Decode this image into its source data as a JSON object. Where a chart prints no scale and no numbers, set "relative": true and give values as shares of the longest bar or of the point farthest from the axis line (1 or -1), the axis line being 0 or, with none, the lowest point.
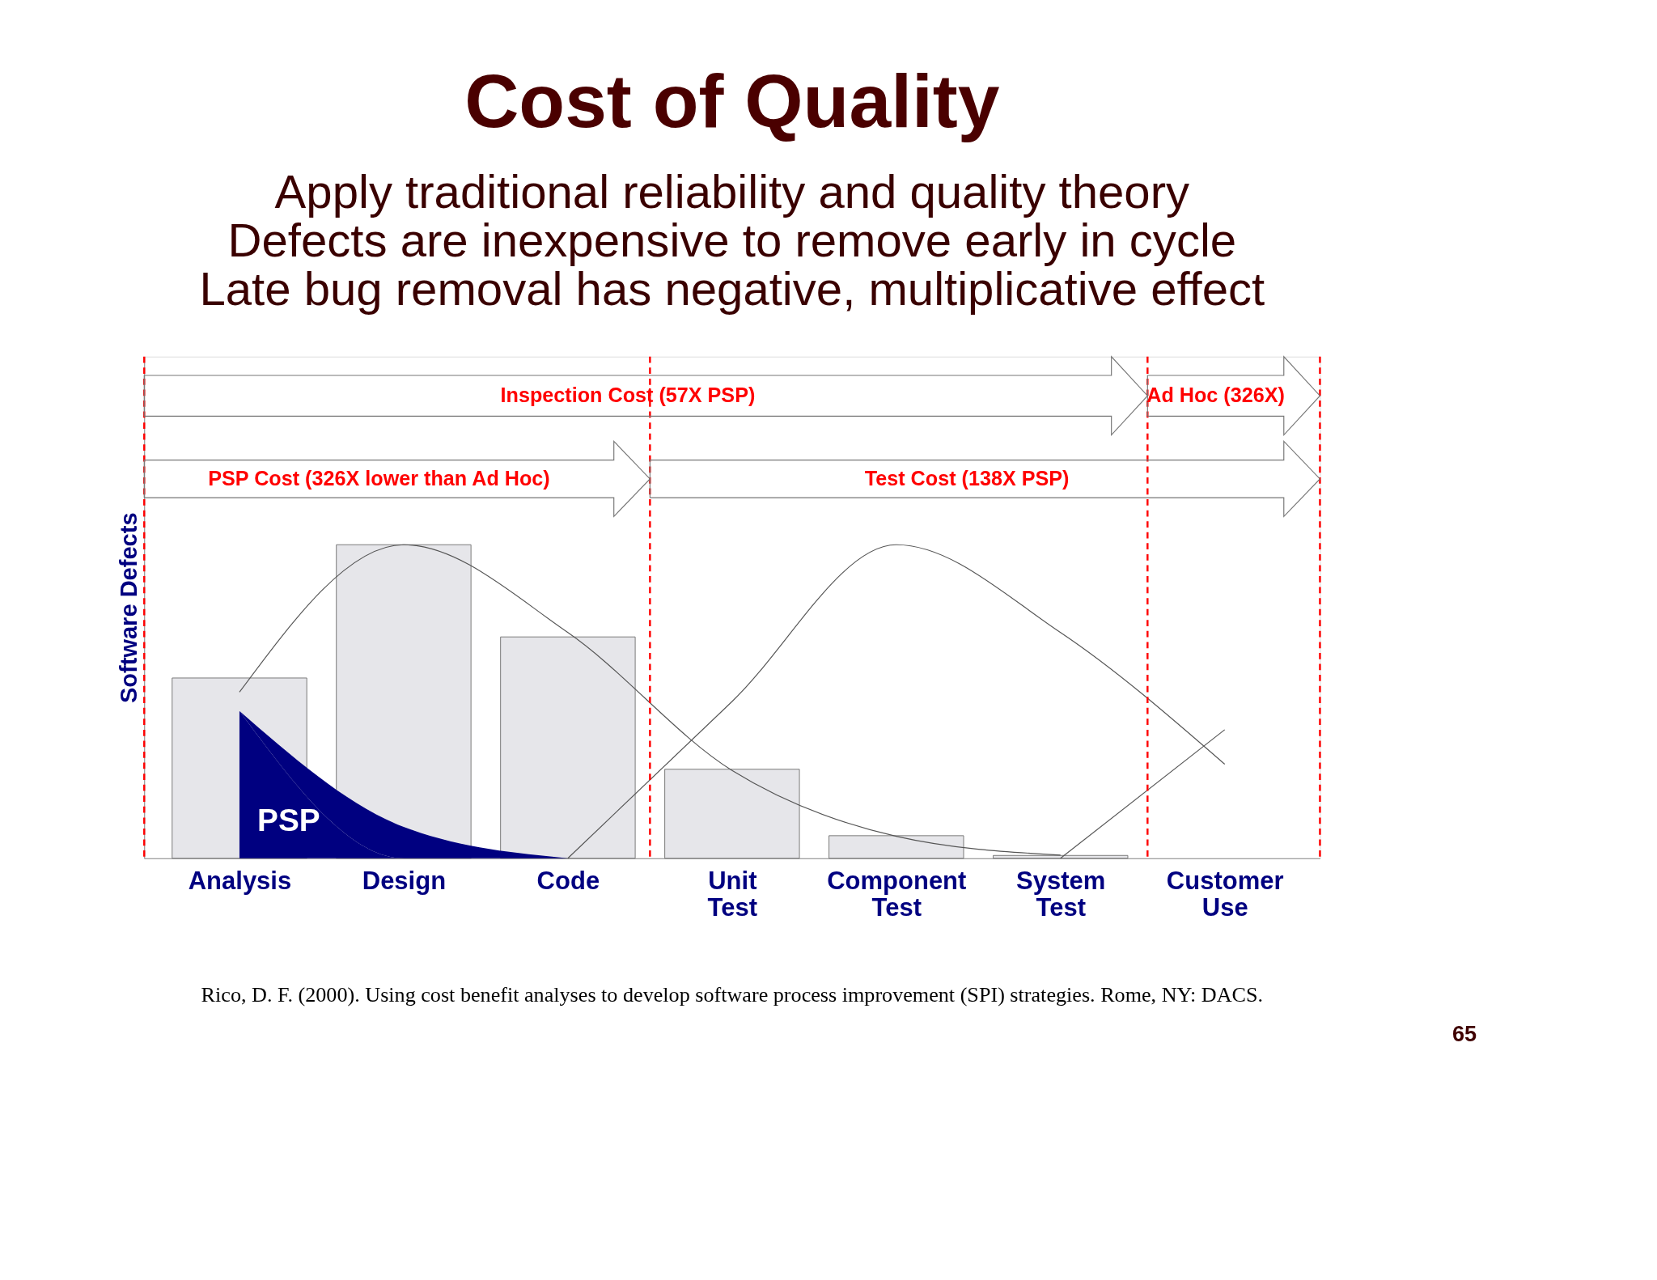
{
  "chart_data": {
    "type": "bar",
    "relative": true,
    "title": "Cost of Quality",
    "subtitle": [
      "Apply traditional reliability and quality theory",
      "Defects are inexpensive to remove early in cycle",
      "Late bug removal has negative, multiplicative effect"
    ],
    "ylabel": "Software Defects",
    "categories": [
      "Analysis",
      "Design",
      "Code",
      "Unit Test",
      "Component Test",
      "System Test",
      "Customer Use"
    ],
    "series": [
      {
        "color": "#e6e6ea",
        "values": [
          0.575,
          1.0,
          0.706,
          0.284,
          0.072,
          0.009,
          null
        ]
      },
      {
        "type": "area",
        "name": "PSP",
        "color": "#000080",
        "values": [
          0.47,
          0.1,
          0.0,
          null,
          null,
          null,
          null
        ]
      },
      {
        "type": "line",
        "color": "#555555",
        "values": [
          0.53,
          1.0,
          0.72,
          0.28,
          0.07,
          0.01,
          null
        ]
      },
      {
        "type": "line",
        "color": "#555555",
        "values": [
          null,
          null,
          0,
          0.5,
          1.0,
          0.72,
          0.3
        ]
      },
      {
        "type": "line",
        "color": "#555555",
        "values": [
          null,
          null,
          null,
          null,
          null,
          0,
          0.41
        ]
      }
    ],
    "annotations": [
      "Inspection Cost (57X PSP)",
      "Ad Hoc (326X)",
      "PSP Cost (326X lower than Ad Hoc)",
      "Test Cost (138X PSP)",
      "Rico, D. F. (2000). Using cost benefit analyses to develop software process improvement (SPI) strategies. Rome, NY: DACS.",
      "65"
    ],
    "grid": false
  }
}
